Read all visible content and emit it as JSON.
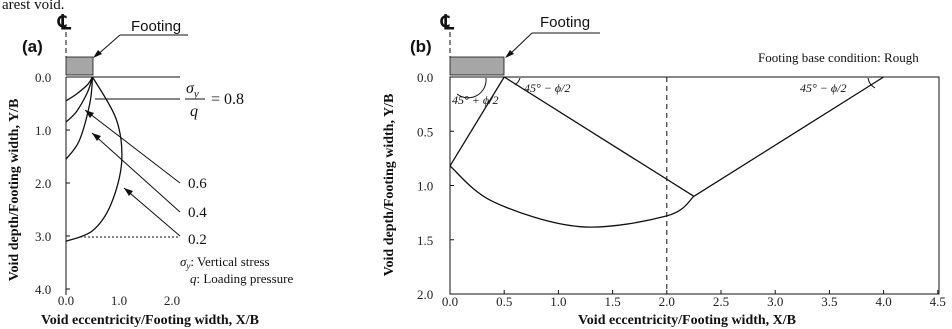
{
  "top_fragment": "arest void.",
  "panels": {
    "a": {
      "label": "(a)",
      "cl_symbol": "℄",
      "footing_label": "Footing",
      "ratio_numerator": "σ",
      "ratio_sub": "y",
      "ratio_denominator": "q",
      "ratio_value": "= 0.8",
      "contour_values": [
        "0.6",
        "0.4",
        "0.2"
      ],
      "legend_1_sym": "σ",
      "legend_1_sub": "y",
      "legend_1_text": ": Vertical stress",
      "legend_2_sym": "q",
      "legend_2_text": ": Loading pressure",
      "ylabel": "Void depth/Footing width, Y/B",
      "xlabel": "Void eccentricity/Footing width, X/B"
    },
    "b": {
      "label": "(b)",
      "cl_symbol": "℄",
      "footing_label": "Footing",
      "condition": "Footing base condition: Rough",
      "angle_1": "45° + ϕ/2",
      "angle_2": "45° − ϕ/2",
      "angle_3": "45° − ϕ/2",
      "ylabel": "Void depth/Footing width, Y/B",
      "xlabel": "Void eccentricity/Footing width, X/B"
    }
  },
  "chart_data": [
    {
      "type": "line",
      "panel": "a",
      "xlabel": "Void eccentricity/Footing width, X/B",
      "ylabel": "Void depth/Footing width, Y/B",
      "xlim": [
        0,
        2
      ],
      "ylim": [
        4,
        0
      ],
      "xticks": [
        "0.0",
        "1.0",
        "2.0"
      ],
      "yticks": [
        "0.0",
        "1.0",
        "2.0",
        "3.0",
        "4.0"
      ],
      "series": [
        {
          "name": "0.8",
          "points": [
            [
              0,
              0.45
            ],
            [
              0.2,
              0.32
            ],
            [
              0.4,
              0.15
            ],
            [
              0.5,
              0.0
            ]
          ]
        },
        {
          "name": "0.6",
          "points": [
            [
              0,
              0.85
            ],
            [
              0.2,
              0.65
            ],
            [
              0.4,
              0.3
            ],
            [
              0.5,
              0.0
            ]
          ]
        },
        {
          "name": "0.4",
          "points": [
            [
              0,
              1.55
            ],
            [
              0.25,
              1.2
            ],
            [
              0.45,
              0.5
            ],
            [
              0.5,
              0.0
            ]
          ]
        },
        {
          "name": "0.2",
          "points": [
            [
              0,
              3.1
            ],
            [
              0.5,
              2.9
            ],
            [
              0.85,
              2.4
            ],
            [
              1.05,
              1.6
            ],
            [
              0.95,
              0.8
            ],
            [
              0.5,
              0.0
            ]
          ]
        }
      ]
    },
    {
      "type": "line",
      "panel": "b",
      "xlabel": "Void eccentricity/Footing width, X/B",
      "ylabel": "Void depth/Footing width, Y/B",
      "xlim": [
        0,
        4.5
      ],
      "ylim": [
        2,
        0
      ],
      "xticks": [
        "0.0",
        "0.5",
        "1.0",
        "1.5",
        "2.0",
        "2.5",
        "3.0",
        "3.5",
        "4.0",
        "4.5"
      ],
      "yticks": [
        "0.0",
        "0.5",
        "1.0",
        "1.5",
        "2.0"
      ],
      "reference_x": 2.0,
      "series": [
        {
          "name": "",
          "points": [
            [
              0,
              0.82
            ],
            [
              0.5,
              0.0
            ]
          ]
        },
        {
          "name": "",
          "points": [
            [
              0.5,
              0.0
            ],
            [
              2.25,
              1.1
            ]
          ]
        },
        {
          "name": "",
          "points": [
            [
              2.25,
              1.1
            ],
            [
              4.0,
              0.0
            ]
          ]
        },
        {
          "name": "",
          "points": [
            [
              0,
              0.82
            ],
            [
              0.4,
              1.15
            ],
            [
              1.2,
              1.38
            ],
            [
              2.0,
              1.28
            ],
            [
              2.25,
              1.1
            ]
          ]
        }
      ]
    }
  ]
}
